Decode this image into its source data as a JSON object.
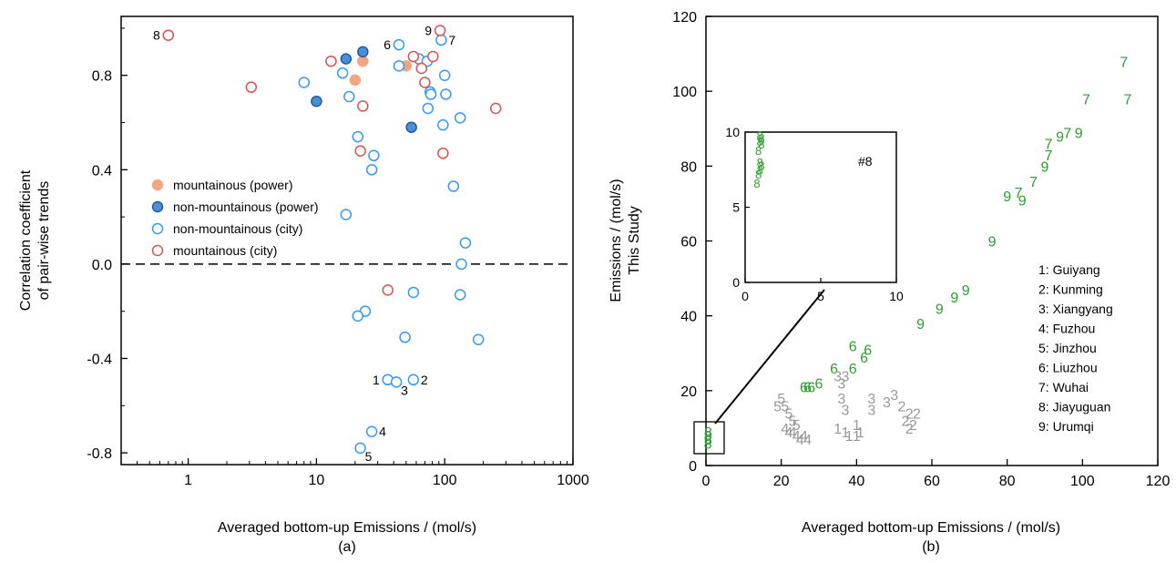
{
  "colors": {
    "axis": "#000000",
    "mountainous_power": "#f4a582",
    "non_mountainous_power": "#4a90d9",
    "non_mountainous_city": "#3399ff",
    "mountainous_city": "#e05050",
    "green_label": "#2ca02c",
    "gray_label": "#999999"
  },
  "chart_data": [
    {
      "type": "scatter",
      "caption": "(a)",
      "xlabel": "Averaged bottom-up Emissions / (mol/s)",
      "ylabel": [
        "Correlation coefficient",
        "of pair-wise trends"
      ],
      "xscale": "log",
      "xlim": [
        0.3,
        1000
      ],
      "ylim": [
        -0.85,
        1.05
      ],
      "xticks": [
        {
          "v": 1,
          "label": "1"
        },
        {
          "v": 10,
          "label": "10"
        },
        {
          "v": 100,
          "label": "100"
        },
        {
          "v": 1000,
          "label": "1000"
        }
      ],
      "yticks": [
        {
          "v": -0.8,
          "label": "-0.8"
        },
        {
          "v": -0.4,
          "label": "-0.4"
        },
        {
          "v": 0.0,
          "label": "0.0"
        },
        {
          "v": 0.4,
          "label": "0.4"
        },
        {
          "v": 0.8,
          "label": "0.8"
        }
      ],
      "reference_line": {
        "y": 0,
        "style": "dashed"
      },
      "legend_position": "middle-left",
      "series": [
        {
          "name": "mountainous (power)",
          "marker": "filled",
          "color_key": "mountainous_power",
          "points": [
            [
              20,
              0.78
            ],
            [
              23,
              0.86
            ],
            [
              50,
              0.84
            ]
          ]
        },
        {
          "name": "non-mountainous (power)",
          "marker": "filled",
          "color_key": "non_mountainous_power",
          "points": [
            [
              10,
              0.69
            ],
            [
              17,
              0.87
            ],
            [
              23,
              0.9
            ],
            [
              55,
              0.58
            ]
          ]
        },
        {
          "name": "non-mountainous (city)",
          "marker": "open",
          "color_key": "non_mountainous_city",
          "points": [
            [
              8,
              0.77
            ],
            [
              16,
              0.81
            ],
            [
              18,
              0.71
            ],
            [
              21,
              0.54
            ],
            [
              28,
              0.46
            ],
            [
              27,
              0.4
            ],
            [
              17,
              0.21
            ],
            [
              44,
              0.93
            ],
            [
              44,
              0.84
            ],
            [
              63,
              0.87
            ],
            [
              73,
              0.86
            ],
            [
              77,
              0.73
            ],
            [
              74,
              0.66
            ],
            [
              78,
              0.72
            ],
            [
              100,
              0.8
            ],
            [
              102,
              0.72
            ],
            [
              94,
              0.95
            ],
            [
              97,
              0.59
            ],
            [
              132,
              0.62
            ],
            [
              117,
              0.33
            ],
            [
              145,
              0.09
            ],
            [
              135,
              0.0
            ],
            [
              132,
              -0.13
            ],
            [
              57,
              -0.12
            ],
            [
              49,
              -0.31
            ],
            [
              183,
              -0.32
            ],
            [
              24,
              -0.2
            ],
            [
              21,
              -0.22
            ],
            [
              36,
              -0.49
            ],
            [
              42,
              -0.5
            ],
            [
              57,
              -0.49
            ],
            [
              27,
              -0.71
            ],
            [
              22,
              -0.78
            ]
          ]
        },
        {
          "name": "mountainous (city)",
          "marker": "open",
          "color_key": "mountainous_city",
          "points": [
            [
              0.7,
              0.97
            ],
            [
              3.1,
              0.75
            ],
            [
              13,
              0.86
            ],
            [
              23,
              0.67
            ],
            [
              22,
              0.48
            ],
            [
              57,
              0.88
            ],
            [
              66,
              0.83
            ],
            [
              70,
              0.77
            ],
            [
              81,
              0.88
            ],
            [
              92,
              0.99
            ],
            [
              97,
              0.47
            ],
            [
              250,
              0.66
            ],
            [
              36,
              -0.11
            ]
          ]
        }
      ],
      "annotations": [
        {
          "label": "8",
          "x": 0.7,
          "y": 0.97,
          "pos": "left"
        },
        {
          "label": "6",
          "x": 44,
          "y": 0.93,
          "pos": "left"
        },
        {
          "label": "9",
          "x": 92,
          "y": 0.99,
          "pos": "left"
        },
        {
          "label": "7",
          "x": 94,
          "y": 0.95,
          "pos": "right"
        },
        {
          "label": "1",
          "x": 36,
          "y": -0.49,
          "pos": "left"
        },
        {
          "label": "3",
          "x": 42,
          "y": -0.5,
          "pos": "below-right"
        },
        {
          "label": "2",
          "x": 57,
          "y": -0.49,
          "pos": "right"
        },
        {
          "label": "4",
          "x": 27,
          "y": -0.71,
          "pos": "right"
        },
        {
          "label": "5",
          "x": 22,
          "y": -0.78,
          "pos": "below-right"
        }
      ]
    },
    {
      "type": "scatter",
      "caption": "(b)",
      "xlabel": "Averaged bottom-up Emissions / (mol/s)",
      "ylabel": [
        "Emissions / (mol/s)",
        "This Study"
      ],
      "xlim": [
        0,
        120
      ],
      "ylim": [
        0,
        120
      ],
      "xticks": [
        0,
        20,
        40,
        60,
        80,
        100,
        120
      ],
      "yticks": [
        0,
        20,
        40,
        60,
        80,
        100,
        120
      ],
      "marker": "digit",
      "legend_position": "right",
      "legend": [
        "1: Guiyang",
        "2: Kunming",
        "3: Xiangyang",
        "4: Fuzhou",
        "5: Jinzhou",
        "6: Liuzhou",
        "7: Wuhai",
        "8: Jiayuguan",
        "9: Urumqi"
      ],
      "points": [
        {
          "label": "7",
          "x": 111,
          "y": 108,
          "color_key": "green_label"
        },
        {
          "label": "7",
          "x": 112,
          "y": 98,
          "color_key": "green_label"
        },
        {
          "label": "7",
          "x": 101,
          "y": 98,
          "color_key": "green_label"
        },
        {
          "label": "7",
          "x": 96,
          "y": 89,
          "color_key": "green_label"
        },
        {
          "label": "9",
          "x": 94,
          "y": 88,
          "color_key": "green_label"
        },
        {
          "label": "9",
          "x": 99,
          "y": 89,
          "color_key": "green_label"
        },
        {
          "label": "7",
          "x": 91,
          "y": 86,
          "color_key": "green_label"
        },
        {
          "label": "7",
          "x": 91,
          "y": 83,
          "color_key": "green_label"
        },
        {
          "label": "9",
          "x": 90,
          "y": 80,
          "color_key": "green_label"
        },
        {
          "label": "7",
          "x": 87,
          "y": 76,
          "color_key": "green_label"
        },
        {
          "label": "7",
          "x": 83,
          "y": 73,
          "color_key": "green_label"
        },
        {
          "label": "9",
          "x": 80,
          "y": 72,
          "color_key": "green_label"
        },
        {
          "label": "9",
          "x": 84,
          "y": 71,
          "color_key": "green_label"
        },
        {
          "label": "9",
          "x": 76,
          "y": 60,
          "color_key": "green_label"
        },
        {
          "label": "9",
          "x": 69,
          "y": 47,
          "color_key": "green_label"
        },
        {
          "label": "9",
          "x": 66,
          "y": 45,
          "color_key": "green_label"
        },
        {
          "label": "9",
          "x": 62,
          "y": 42,
          "color_key": "green_label"
        },
        {
          "label": "9",
          "x": 57,
          "y": 38,
          "color_key": "green_label"
        },
        {
          "label": "6",
          "x": 39,
          "y": 32,
          "color_key": "green_label"
        },
        {
          "label": "6",
          "x": 43,
          "y": 31,
          "color_key": "green_label"
        },
        {
          "label": "6",
          "x": 42,
          "y": 29,
          "color_key": "green_label"
        },
        {
          "label": "6",
          "x": 34,
          "y": 26,
          "color_key": "green_label"
        },
        {
          "label": "6",
          "x": 39,
          "y": 26,
          "color_key": "green_label"
        },
        {
          "label": "6",
          "x": 30,
          "y": 22,
          "color_key": "green_label"
        },
        {
          "label": "6",
          "x": 26,
          "y": 21,
          "color_key": "green_label"
        },
        {
          "label": "6",
          "x": 27,
          "y": 21,
          "color_key": "green_label"
        },
        {
          "label": "6",
          "x": 28,
          "y": 21,
          "color_key": "green_label"
        },
        {
          "label": "3",
          "x": 35,
          "y": 24,
          "color_key": "gray_label"
        },
        {
          "label": "3",
          "x": 37,
          "y": 24,
          "color_key": "gray_label"
        },
        {
          "label": "3",
          "x": 36,
          "y": 22,
          "color_key": "gray_label"
        },
        {
          "label": "3",
          "x": 36,
          "y": 18,
          "color_key": "gray_label"
        },
        {
          "label": "3",
          "x": 44,
          "y": 18,
          "color_key": "gray_label"
        },
        {
          "label": "3",
          "x": 44,
          "y": 15,
          "color_key": "gray_label"
        },
        {
          "label": "3",
          "x": 48,
          "y": 17,
          "color_key": "gray_label"
        },
        {
          "label": "3",
          "x": 50,
          "y": 19,
          "color_key": "gray_label"
        },
        {
          "label": "3",
          "x": 37,
          "y": 15,
          "color_key": "gray_label"
        },
        {
          "label": "2",
          "x": 52,
          "y": 16,
          "color_key": "gray_label"
        },
        {
          "label": "2",
          "x": 54,
          "y": 14,
          "color_key": "gray_label"
        },
        {
          "label": "2",
          "x": 56,
          "y": 14,
          "color_key": "gray_label"
        },
        {
          "label": "2",
          "x": 53,
          "y": 12,
          "color_key": "gray_label"
        },
        {
          "label": "2",
          "x": 55,
          "y": 11,
          "color_key": "gray_label"
        },
        {
          "label": "2",
          "x": 54,
          "y": 10,
          "color_key": "gray_label"
        },
        {
          "label": "1",
          "x": 35,
          "y": 10,
          "color_key": "gray_label"
        },
        {
          "label": "1",
          "x": 37,
          "y": 9,
          "color_key": "gray_label"
        },
        {
          "label": "1",
          "x": 38,
          "y": 8,
          "color_key": "gray_label"
        },
        {
          "label": "1",
          "x": 40,
          "y": 8,
          "color_key": "gray_label"
        },
        {
          "label": "1",
          "x": 40,
          "y": 11,
          "color_key": "gray_label"
        },
        {
          "label": "1",
          "x": 41,
          "y": 9,
          "color_key": "gray_label"
        },
        {
          "label": "5",
          "x": 19,
          "y": 16,
          "color_key": "gray_label"
        },
        {
          "label": "5",
          "x": 21,
          "y": 16,
          "color_key": "gray_label"
        },
        {
          "label": "5",
          "x": 20,
          "y": 18,
          "color_key": "gray_label"
        },
        {
          "label": "5",
          "x": 22,
          "y": 14,
          "color_key": "gray_label"
        },
        {
          "label": "5",
          "x": 23,
          "y": 12,
          "color_key": "gray_label"
        },
        {
          "label": "5",
          "x": 24,
          "y": 11,
          "color_key": "gray_label"
        },
        {
          "label": "4",
          "x": 21,
          "y": 10,
          "color_key": "gray_label"
        },
        {
          "label": "4",
          "x": 22,
          "y": 9,
          "color_key": "gray_label"
        },
        {
          "label": "4",
          "x": 23,
          "y": 9,
          "color_key": "gray_label"
        },
        {
          "label": "4",
          "x": 24,
          "y": 8,
          "color_key": "gray_label"
        },
        {
          "label": "4",
          "x": 26,
          "y": 8,
          "color_key": "gray_label"
        },
        {
          "label": "4",
          "x": 25,
          "y": 7,
          "color_key": "gray_label"
        },
        {
          "label": "4",
          "x": 27,
          "y": 7,
          "color_key": "gray_label"
        },
        {
          "label": "8",
          "x": 0.6,
          "y": 9,
          "color_key": "green_label"
        },
        {
          "label": "8",
          "x": 0.5,
          "y": 8,
          "color_key": "green_label"
        },
        {
          "label": "8",
          "x": 0.6,
          "y": 7,
          "color_key": "green_label"
        },
        {
          "label": "8",
          "x": 0.5,
          "y": 6,
          "color_key": "green_label"
        }
      ],
      "inset": {
        "annotation": "#8",
        "xlim": [
          0,
          10
        ],
        "ylim": [
          0,
          10
        ],
        "xticks": [
          0,
          5,
          10
        ],
        "yticks": [
          0,
          5,
          10
        ],
        "zoom_region": {
          "x": [
            0,
            5
          ],
          "y": [
            4,
            11
          ]
        },
        "points": [
          {
            "label": "8",
            "x": 0.5,
            "y": 9.8
          },
          {
            "label": "8",
            "x": 0.6,
            "y": 9.6
          },
          {
            "label": "8",
            "x": 0.5,
            "y": 9.4
          },
          {
            "label": "8",
            "x": 0.6,
            "y": 9.2
          },
          {
            "label": "8",
            "x": 0.4,
            "y": 8.8
          },
          {
            "label": "8",
            "x": 0.5,
            "y": 8.0
          },
          {
            "label": "8",
            "x": 0.6,
            "y": 7.8
          },
          {
            "label": "8",
            "x": 0.5,
            "y": 7.5
          },
          {
            "label": "8",
            "x": 0.4,
            "y": 7.2
          },
          {
            "label": "8",
            "x": 0.3,
            "y": 6.6
          }
        ]
      }
    }
  ]
}
